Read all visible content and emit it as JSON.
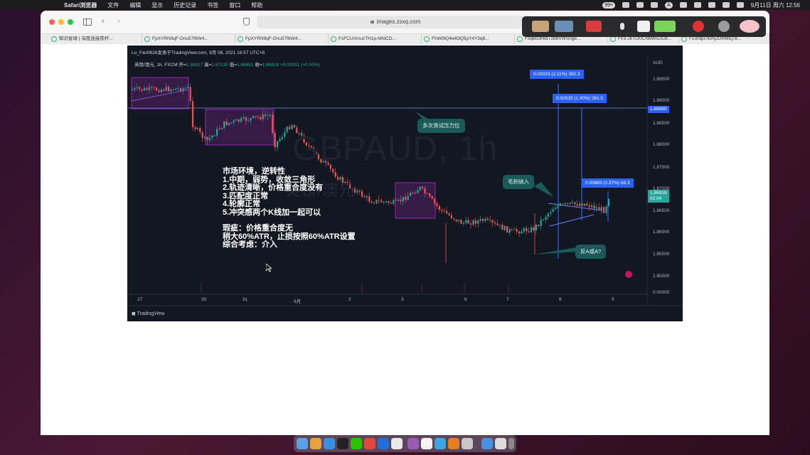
{
  "menubar": {
    "app_name": "Safari浏览器",
    "items": [
      "文件",
      "编辑",
      "显示",
      "历史记录",
      "书签",
      "窗口",
      "帮助"
    ],
    "badge": "99+",
    "clock": "9月11日 周六 12:56",
    "ime": "A"
  },
  "browser": {
    "url": "images.zsxq.com",
    "tabs": [
      {
        "label": "知识星球 | 深度连接铁杆..."
      },
      {
        "label": "FpXYRN9qF-Dnu57f6W4..."
      },
      {
        "label": "FpXYRN9qF-Dnu57f6W4..."
      },
      {
        "label": "FsFCUXmuzTH1p-MfdCD..."
      },
      {
        "label": "FhWI9Q4w63Q5pY4Y3q8..."
      },
      {
        "label": "FxqBcoh6b72bbVWS0ge..."
      },
      {
        "label": "Ft/3-J6TOUCN6WsLk2k..."
      },
      {
        "label": "Fu3rdpi7kvhj2DRMiQ-b..."
      }
    ]
  },
  "chart": {
    "header": "Lu_Fan0626发表于TradingView.com, 9月 08, 2021 16:57 UTC+8",
    "symbol_line": "英镑/澳元, 1h, FXCM",
    "ohlc": {
      "o_label": "开=",
      "o": "1.86917",
      "h_label": "高=",
      "h": "1.87135",
      "l_label": "低=",
      "l": "1.86851",
      "c_label": "收=",
      "c": "1.86918",
      "chg": "+0.00001 (+0.00%)"
    },
    "currency": "AUD",
    "watermark": "GBPAUD, 1h",
    "watermark2": "英镑/澳元",
    "price_ticks": [
      "1.90000",
      "1.89500",
      "1.89000",
      "1.88500",
      "1.88000",
      "1.87500",
      "1.87000",
      "1.86500",
      "1.86000",
      "1.85500",
      "1.85000",
      "0.00000"
    ],
    "time_ticks": [
      "27",
      "30",
      "31",
      "9月",
      "2",
      "3",
      "6",
      "7",
      "8",
      "9"
    ],
    "resistance_label": "1.88860",
    "last_price": "1.86918",
    "last_countdown": "02:04",
    "measure_labels": [
      "0.03923 (2.11%) 392.3",
      "0.02615 (1.40%) 261.5",
      "0.00683 (0.37%) 68.3"
    ],
    "bubbles": [
      "多次测试压力位",
      "毛刺纳入",
      "反A或A?"
    ],
    "notes": [
      "市场环境，逆转性",
      "1.中期，弱势，收敛三角形",
      "2.轨迹清晰，价格重合度没有",
      "3.匹配度正常",
      "4.轮廓正常",
      "5.冲突感两个K线加一起可以",
      "",
      "瑕疵：价格重合度无",
      "稍大60%ATR，止损按照60%ATR设置",
      "综合考虑：介入"
    ],
    "brand": "TradingView",
    "colors": {
      "bull": "#26a69a",
      "bear": "#ef5350",
      "measure": "#2962ff",
      "zone": "#9c27b0",
      "bubble": "#1a5a5a"
    }
  }
}
